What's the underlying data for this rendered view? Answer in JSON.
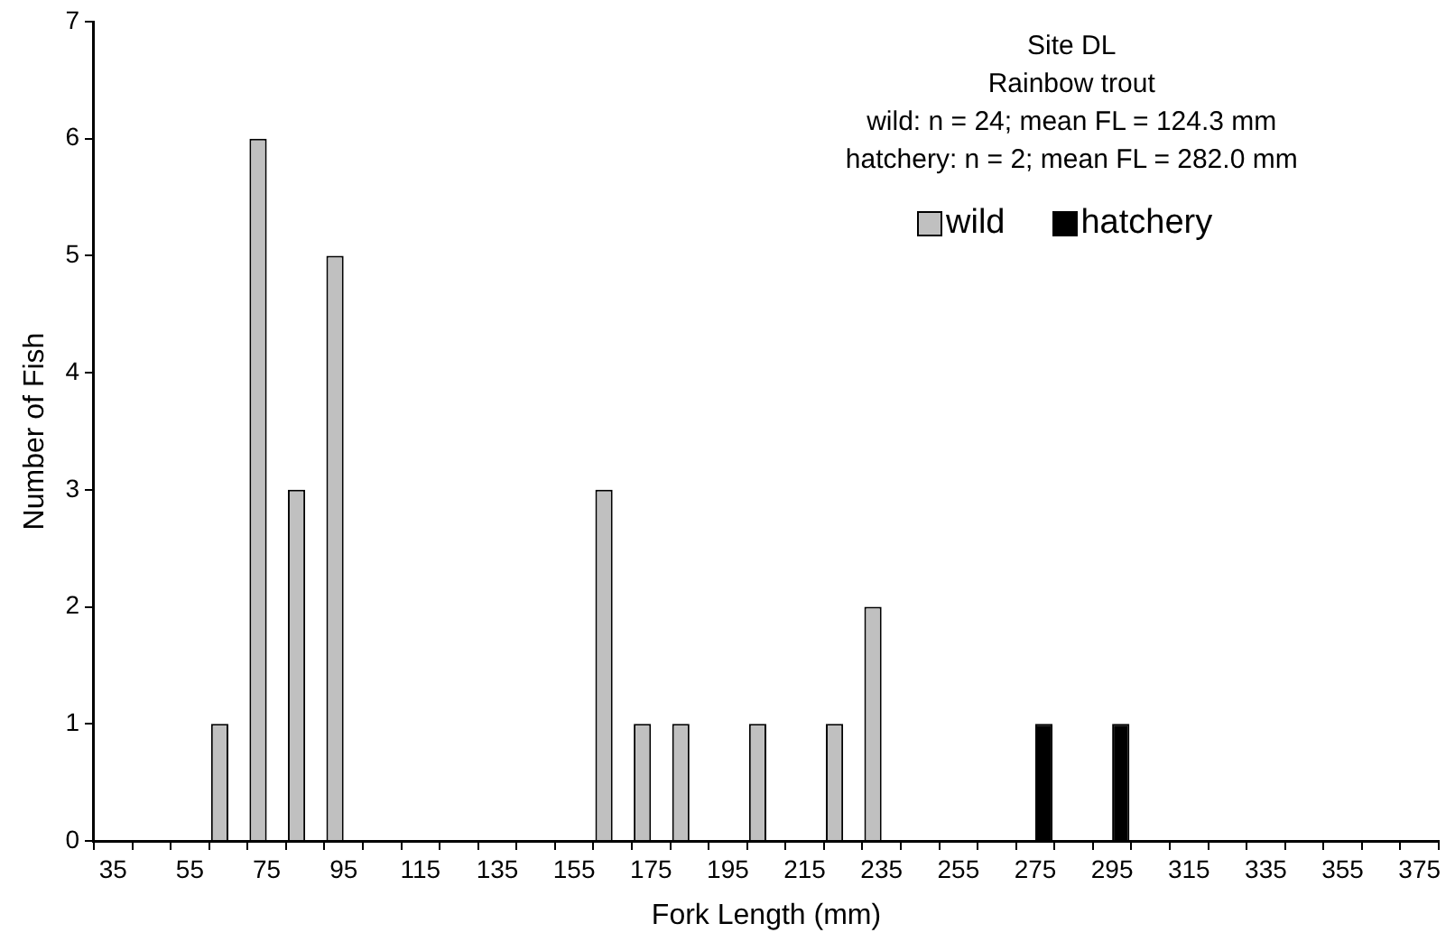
{
  "chart_data": {
    "type": "bar",
    "title": "Site DL",
    "subtitle": "Rainbow trout",
    "annotations": [
      "wild: n = 24; mean FL = 124.3 mm",
      "hatchery: n = 2; mean FL = 282.0 mm"
    ],
    "xlabel": "Fork Length (mm)",
    "ylabel": "Number of Fish",
    "categories": [
      "35",
      null,
      "55",
      null,
      "75",
      null,
      "95",
      null,
      "115",
      null,
      "135",
      null,
      "155",
      null,
      "175",
      null,
      "195",
      null,
      "215",
      null,
      "235",
      null,
      "255",
      null,
      "275",
      null,
      "295",
      null,
      "315",
      null,
      "335",
      null,
      "355",
      null,
      "375"
    ],
    "series": [
      {
        "name": "wild",
        "color": "#c0c0c0",
        "values": [
          0,
          0,
          0,
          1,
          6,
          3,
          5,
          0,
          0,
          0,
          0,
          0,
          0,
          3,
          1,
          1,
          0,
          1,
          0,
          1,
          2,
          0,
          0,
          0,
          0,
          0,
          0,
          0,
          0,
          0,
          0,
          0,
          0,
          0,
          0
        ]
      },
      {
        "name": "hatchery",
        "color": "#000000",
        "values": [
          0,
          0,
          0,
          0,
          0,
          0,
          0,
          0,
          0,
          0,
          0,
          0,
          0,
          0,
          0,
          0,
          0,
          0,
          0,
          0,
          0,
          0,
          0,
          0,
          1,
          0,
          1,
          0,
          0,
          0,
          0,
          0,
          0,
          0,
          0
        ]
      }
    ],
    "ylim": [
      0,
      7
    ],
    "yticks": [
      0,
      1,
      2,
      3,
      4,
      5,
      6,
      7
    ],
    "grid": false,
    "legend": "top right"
  }
}
